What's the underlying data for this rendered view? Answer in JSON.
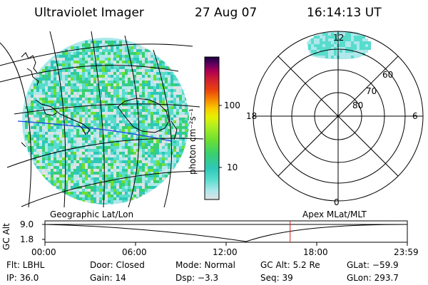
{
  "header": {
    "instrument": "Ultraviolet Imager",
    "date": "27 Aug 07",
    "time": "16:14:13 UT"
  },
  "colorbar": {
    "unit_label": "photon cm⁻²s⁻¹",
    "ticks": [
      "100",
      "10"
    ],
    "scale": "log",
    "colors": [
      "#dde3e3",
      "#aee8ec",
      "#58dccc",
      "#2ec8b8",
      "#38d070",
      "#6ee030",
      "#b4f020",
      "#e8f000",
      "#f8c800",
      "#f88800",
      "#e84010",
      "#d02030",
      "#b00050",
      "#600060",
      "#1a0040"
    ]
  },
  "polar_plot": {
    "mlt_labels": {
      "top": "12",
      "left": "18",
      "right": "6",
      "bottom": "0"
    },
    "lat_labels": [
      "60",
      "70",
      "80"
    ],
    "rings": [
      50,
      60,
      70,
      80
    ]
  },
  "timeline": {
    "left_label": "Geographic Lat/Lon",
    "right_label": "Apex  MLat/MLT",
    "axis_label": "GC Alt",
    "y_ticks": [
      "9.0",
      "1.8"
    ],
    "x_ticks": [
      "00:00",
      "06:00",
      "12:00",
      "18:00",
      "23:59"
    ],
    "current_time_hours": 16.24,
    "curve_color": "#000000",
    "marker_color": "#d02020"
  },
  "info": {
    "flt": "Flt: LBHL",
    "door": "Door: Closed",
    "mode": "Mode: Normal",
    "gc_alt": "GC Alt: 5.2 Re",
    "glat": "GLat: −59.9",
    "ip": "IP: 36.0",
    "gain": "Gain: 14",
    "dsp": "Dsp:    −3.3",
    "seq": "Seq: 39",
    "glon": "GLon: 293.7"
  }
}
